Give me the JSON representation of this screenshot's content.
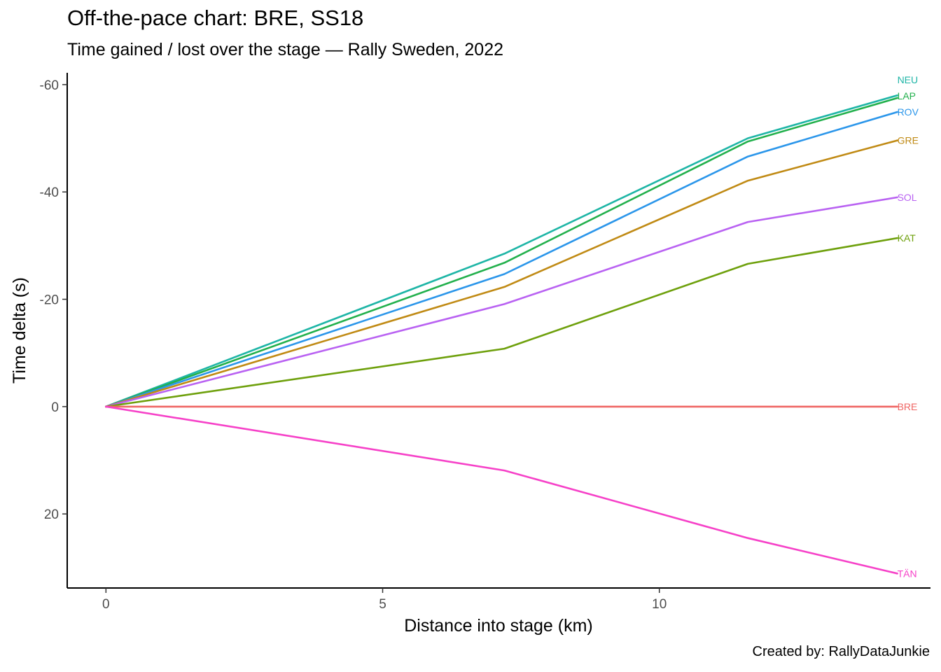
{
  "chart_data": {
    "type": "line",
    "title": "Off-the-pace chart: BRE, SS18",
    "subtitle": "Time gained / lost over the stage — Rally Sweden, 2022",
    "caption": "Created by: RallyDataJunkie",
    "xlabel": "Distance into stage (km)",
    "ylabel": "Time delta (s)",
    "xlim": [
      -0.7,
      14.9
    ],
    "ylim": [
      33.8,
      -62.2
    ],
    "y_reversed": true,
    "x_ticks": [
      0,
      5,
      10
    ],
    "x_tick_labels": [
      "0",
      "5",
      "10"
    ],
    "y_ticks": [
      -60,
      -40,
      -20,
      0,
      20
    ],
    "y_tick_labels": [
      "-60",
      "-40",
      "-20",
      "0",
      "20"
    ],
    "grid": false,
    "legend": "none",
    "x": [
      0,
      7.2,
      11.6,
      14.3
    ],
    "series": [
      {
        "name": "NEU",
        "color": "#1eb5a6",
        "values": [
          0,
          -28.5,
          -50.0,
          -58.0
        ]
      },
      {
        "name": "LAP",
        "color": "#22b04c",
        "values": [
          0,
          -26.8,
          -49.4,
          -57.5
        ]
      },
      {
        "name": "ROV",
        "color": "#2b96ea",
        "values": [
          0,
          -24.7,
          -46.6,
          -54.9
        ]
      },
      {
        "name": "GRE",
        "color": "#c08a14",
        "values": [
          0,
          -22.3,
          -42.1,
          -49.6
        ]
      },
      {
        "name": "SOL",
        "color": "#b962f2",
        "values": [
          0,
          -19.1,
          -34.4,
          -39.0
        ]
      },
      {
        "name": "KAT",
        "color": "#6ea00c",
        "values": [
          0,
          -10.8,
          -26.6,
          -31.4
        ]
      },
      {
        "name": "BRE",
        "color": "#ef6563",
        "values": [
          0,
          0,
          0,
          0
        ]
      },
      {
        "name": "TÄN",
        "color": "#f641c8",
        "values": [
          0,
          11.9,
          24.5,
          31.1
        ]
      }
    ]
  }
}
